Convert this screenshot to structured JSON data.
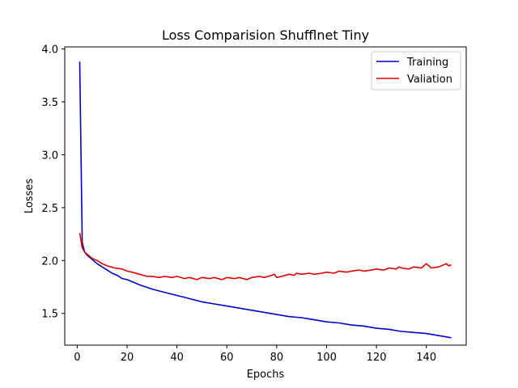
{
  "chart_data": {
    "type": "line",
    "title": "Loss Comparision Shufflnet Tiny",
    "xlabel": "Epochs",
    "ylabel": "Losses",
    "xlim": [
      -5,
      156
    ],
    "ylim": [
      1.2,
      4.02
    ],
    "xticks": [
      0,
      20,
      40,
      60,
      80,
      100,
      120,
      140
    ],
    "yticks": [
      1.5,
      2.0,
      2.5,
      3.0,
      3.5,
      4.0
    ],
    "grid": false,
    "legend_position": "top-right",
    "series": [
      {
        "name": "Training",
        "color": "#0000cc",
        "x": [
          1,
          2,
          3,
          4,
          5,
          6,
          7,
          8,
          10,
          12,
          14,
          16,
          18,
          20,
          25,
          30,
          35,
          40,
          45,
          50,
          55,
          60,
          65,
          70,
          75,
          80,
          85,
          90,
          95,
          100,
          105,
          110,
          115,
          120,
          125,
          130,
          135,
          140,
          145,
          150
        ],
        "y": [
          3.88,
          2.17,
          2.08,
          2.05,
          2.03,
          2.01,
          1.99,
          1.97,
          1.94,
          1.91,
          1.88,
          1.86,
          1.83,
          1.82,
          1.77,
          1.73,
          1.7,
          1.67,
          1.64,
          1.61,
          1.59,
          1.57,
          1.55,
          1.53,
          1.51,
          1.49,
          1.47,
          1.46,
          1.44,
          1.42,
          1.41,
          1.39,
          1.38,
          1.36,
          1.35,
          1.33,
          1.32,
          1.31,
          1.29,
          1.27
        ]
      },
      {
        "name": "Valiation",
        "color": "#dd0000",
        "x": [
          1,
          2,
          3,
          4,
          5,
          6,
          8,
          10,
          12,
          15,
          18,
          20,
          22,
          25,
          28,
          30,
          33,
          35,
          38,
          40,
          43,
          45,
          48,
          50,
          53,
          55,
          58,
          60,
          63,
          65,
          68,
          70,
          73,
          75,
          78,
          79,
          80,
          82,
          85,
          87,
          88,
          90,
          93,
          95,
          98,
          100,
          103,
          105,
          108,
          110,
          113,
          115,
          118,
          120,
          123,
          125,
          128,
          129,
          130,
          133,
          135,
          138,
          139,
          140,
          142,
          145,
          148,
          149,
          150
        ],
        "y": [
          2.26,
          2.12,
          2.08,
          2.06,
          2.04,
          2.02,
          2.0,
          1.97,
          1.95,
          1.93,
          1.92,
          1.9,
          1.89,
          1.87,
          1.85,
          1.85,
          1.84,
          1.85,
          1.84,
          1.85,
          1.83,
          1.84,
          1.82,
          1.84,
          1.83,
          1.84,
          1.82,
          1.84,
          1.83,
          1.84,
          1.82,
          1.84,
          1.85,
          1.84,
          1.86,
          1.87,
          1.84,
          1.85,
          1.87,
          1.86,
          1.88,
          1.87,
          1.88,
          1.87,
          1.88,
          1.89,
          1.88,
          1.9,
          1.89,
          1.9,
          1.91,
          1.9,
          1.91,
          1.92,
          1.91,
          1.93,
          1.92,
          1.94,
          1.93,
          1.92,
          1.94,
          1.93,
          1.95,
          1.97,
          1.93,
          1.94,
          1.97,
          1.95,
          1.96
        ]
      }
    ]
  }
}
